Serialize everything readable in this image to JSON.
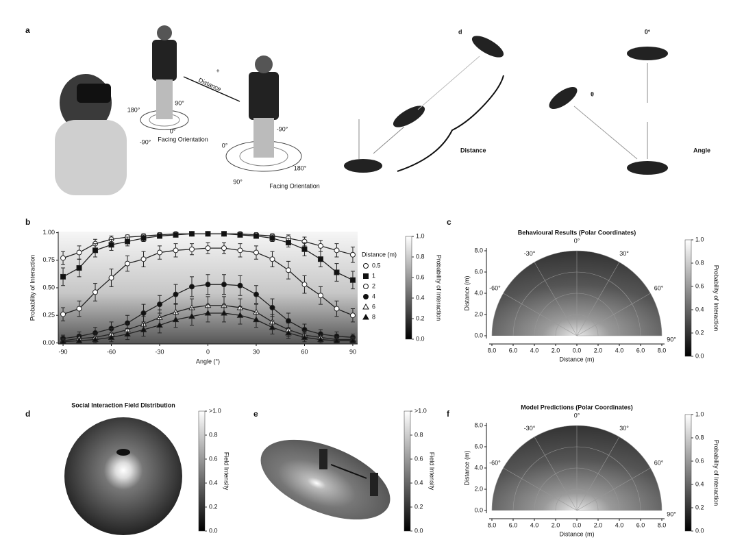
{
  "panel_labels": [
    "a",
    "b",
    "c",
    "d",
    "e",
    "f"
  ],
  "panel_a": {
    "distance_label": "Distance",
    "plus": "+",
    "person1_angles": [
      "180°",
      "90°",
      "0°",
      "-90°"
    ],
    "person1_caption": "Facing Orientation",
    "person2_angles": [
      "0°",
      "-90°",
      "90°",
      "180°"
    ],
    "person2_caption": "Facing Orientation",
    "distance_marker": "d",
    "distance_caption": "Distance",
    "angle_top": "0°",
    "angle_marker": "θ",
    "angle_caption": "Angle"
  },
  "chart_data": [
    {
      "type": "line",
      "xlabel": "Angle (°)",
      "ylabel": "Probability of Interaction",
      "x": [
        -90,
        -80,
        -70,
        -60,
        -50,
        -40,
        -30,
        -20,
        -10,
        0,
        10,
        20,
        30,
        40,
        50,
        60,
        70,
        80,
        90
      ],
      "xlim": [
        -93,
        93
      ],
      "xticks": [
        -90,
        -60,
        -30,
        0,
        30,
        60,
        90
      ],
      "ylim": [
        -0.01,
        1.01
      ],
      "yticks": [
        {
          "value": 0,
          "label": "0.00"
        },
        {
          "value": 0.25,
          "label": "0.25"
        },
        {
          "value": 0.5,
          "label": "0.50"
        },
        {
          "value": 0.75,
          "label": "0.75"
        },
        {
          "value": 1,
          "label": "1.00"
        }
      ],
      "legend_title": "Distance (m)",
      "series": [
        {
          "name": "0.5",
          "color": "#222222",
          "marker": "circle-open",
          "values": [
            0.77,
            0.82,
            0.9,
            0.94,
            0.96,
            0.97,
            0.98,
            0.99,
            0.99,
            0.99,
            0.99,
            0.99,
            0.98,
            0.97,
            0.95,
            0.92,
            0.88,
            0.84,
            0.8
          ],
          "errors": [
            0.06,
            0.06,
            0.04,
            0.03,
            0.02,
            0.02,
            0.02,
            0.01,
            0.01,
            0.01,
            0.01,
            0.01,
            0.02,
            0.02,
            0.03,
            0.04,
            0.05,
            0.06,
            0.07
          ]
        },
        {
          "name": "1",
          "color": "#222222",
          "marker": "square",
          "values": [
            0.6,
            0.68,
            0.84,
            0.89,
            0.92,
            0.95,
            0.97,
            0.98,
            0.99,
            0.99,
            0.99,
            0.98,
            0.97,
            0.95,
            0.91,
            0.85,
            0.76,
            0.64,
            0.57
          ],
          "errors": [
            0.08,
            0.08,
            0.06,
            0.05,
            0.04,
            0.03,
            0.02,
            0.02,
            0.01,
            0.01,
            0.01,
            0.02,
            0.02,
            0.03,
            0.04,
            0.06,
            0.07,
            0.08,
            0.08
          ]
        },
        {
          "name": "2",
          "color": "#222222",
          "marker": "circle-open",
          "values": [
            0.26,
            0.31,
            0.46,
            0.59,
            0.72,
            0.76,
            0.82,
            0.84,
            0.85,
            0.86,
            0.86,
            0.84,
            0.82,
            0.76,
            0.66,
            0.53,
            0.43,
            0.31,
            0.25
          ],
          "errors": [
            0.06,
            0.07,
            0.08,
            0.08,
            0.07,
            0.07,
            0.06,
            0.06,
            0.05,
            0.05,
            0.05,
            0.06,
            0.06,
            0.07,
            0.08,
            0.08,
            0.08,
            0.07,
            0.06
          ]
        },
        {
          "name": "4",
          "color": "#222222",
          "marker": "circle",
          "values": [
            0.04,
            0.06,
            0.09,
            0.13,
            0.18,
            0.27,
            0.35,
            0.44,
            0.51,
            0.53,
            0.53,
            0.52,
            0.44,
            0.32,
            0.2,
            0.12,
            0.08,
            0.06,
            0.05
          ],
          "errors": [
            0.03,
            0.04,
            0.05,
            0.06,
            0.07,
            0.08,
            0.08,
            0.09,
            0.09,
            0.09,
            0.09,
            0.09,
            0.08,
            0.08,
            0.07,
            0.05,
            0.04,
            0.04,
            0.03
          ]
        },
        {
          "name": "6",
          "color": "#222222",
          "marker": "triangle-open",
          "values": [
            0.02,
            0.04,
            0.05,
            0.08,
            0.12,
            0.17,
            0.23,
            0.28,
            0.32,
            0.34,
            0.34,
            0.32,
            0.28,
            0.19,
            0.12,
            0.07,
            0.05,
            0.03,
            0.03
          ],
          "errors": [
            0.02,
            0.03,
            0.04,
            0.05,
            0.06,
            0.07,
            0.07,
            0.08,
            0.08,
            0.08,
            0.08,
            0.08,
            0.07,
            0.07,
            0.06,
            0.04,
            0.03,
            0.03,
            0.02
          ]
        },
        {
          "name": "8",
          "color": "#222222",
          "marker": "triangle",
          "values": [
            0.01,
            0.02,
            0.03,
            0.05,
            0.08,
            0.12,
            0.16,
            0.21,
            0.24,
            0.27,
            0.27,
            0.25,
            0.21,
            0.14,
            0.09,
            0.05,
            0.03,
            0.02,
            0.02
          ],
          "errors": [
            0.01,
            0.02,
            0.03,
            0.04,
            0.05,
            0.06,
            0.07,
            0.07,
            0.08,
            0.08,
            0.08,
            0.08,
            0.07,
            0.06,
            0.05,
            0.04,
            0.03,
            0.02,
            0.02
          ]
        }
      ],
      "colorbar": {
        "label": "Probability of Interaction",
        "lim": [
          0,
          1
        ],
        "ticks": [
          {
            "value": 0,
            "label": "0.0"
          },
          {
            "value": 0.2,
            "label": "0.2"
          },
          {
            "value": 0.4,
            "label": "0.4"
          },
          {
            "value": 0.6,
            "label": "0.6"
          },
          {
            "value": 0.8,
            "label": "0.8"
          },
          {
            "value": 1,
            "label": "1.0"
          }
        ]
      }
    },
    {
      "type": "polar-heatmap",
      "title": "Behavioural Results (Polar Coordinates)",
      "xlabel": "Distance (m)",
      "ylabel": "Distance (m)",
      "rlim": [
        0,
        8
      ],
      "xticks": [
        {
          "value": -8,
          "label": "8.0"
        },
        {
          "value": -6,
          "label": "6.0"
        },
        {
          "value": -4,
          "label": "4.0"
        },
        {
          "value": -2,
          "label": "2.0"
        },
        {
          "value": 0,
          "label": "0.0"
        },
        {
          "value": 2,
          "label": "2.0"
        },
        {
          "value": 4,
          "label": "4.0"
        },
        {
          "value": 6,
          "label": "6.0"
        },
        {
          "value": 8,
          "label": "8.0"
        }
      ],
      "yticks": [
        {
          "value": 0,
          "label": "0.0"
        },
        {
          "value": 2,
          "label": "2.0"
        },
        {
          "value": 4,
          "label": "4.0"
        },
        {
          "value": 6,
          "label": "6.0"
        },
        {
          "value": 8,
          "label": "8.0"
        }
      ],
      "angle_ticks": [
        {
          "value": -60,
          "label": "-60°"
        },
        {
          "value": -30,
          "label": "-30°"
        },
        {
          "value": 0,
          "label": "0°"
        },
        {
          "value": 30,
          "label": "30°"
        },
        {
          "value": 60,
          "label": "60°"
        },
        {
          "value": 90,
          "label": "90°"
        }
      ],
      "colorbar": {
        "label": "Probability of Interaction",
        "lim": [
          0,
          1
        ],
        "ticks": [
          {
            "value": 0,
            "label": "0.0"
          },
          {
            "value": 0.2,
            "label": "0.2"
          },
          {
            "value": 0.4,
            "label": "0.4"
          },
          {
            "value": 0.6,
            "label": "0.6"
          },
          {
            "value": 0.8,
            "label": "0.8"
          },
          {
            "value": 1,
            "label": "1.0"
          }
        ]
      }
    },
    {
      "type": "field",
      "title": "Social Interaction Field Distribution",
      "colorbar": {
        "label": "Field Intensity",
        "lim": [
          0,
          1
        ],
        "ticks": [
          {
            "value": 0,
            "label": "0.0"
          },
          {
            "value": 0.2,
            "label": "0.2"
          },
          {
            "value": 0.4,
            "label": "0.4"
          },
          {
            "value": 0.6,
            "label": "0.6"
          },
          {
            "value": 0.8,
            "label": "0.8"
          },
          {
            "value": 1,
            "label": ">1.0"
          }
        ]
      }
    },
    {
      "type": "field-3d",
      "colorbar": {
        "label": "Field Intensity",
        "lim": [
          0,
          1
        ],
        "ticks": [
          {
            "value": 0,
            "label": "0.0"
          },
          {
            "value": 0.2,
            "label": "0.2"
          },
          {
            "value": 0.4,
            "label": "0.4"
          },
          {
            "value": 0.6,
            "label": "0.6"
          },
          {
            "value": 0.8,
            "label": "0.8"
          },
          {
            "value": 1,
            "label": ">1.0"
          }
        ]
      }
    },
    {
      "type": "polar-heatmap",
      "title": "Model Predictions (Polar Coordinates)",
      "xlabel": "Distance (m)",
      "ylabel": "Distance (m)",
      "rlim": [
        0,
        8
      ],
      "xticks": [
        {
          "value": -8,
          "label": "8.0"
        },
        {
          "value": -6,
          "label": "6.0"
        },
        {
          "value": -4,
          "label": "4.0"
        },
        {
          "value": -2,
          "label": "2.0"
        },
        {
          "value": 0,
          "label": "0.0"
        },
        {
          "value": 2,
          "label": "2.0"
        },
        {
          "value": 4,
          "label": "4.0"
        },
        {
          "value": 6,
          "label": "6.0"
        },
        {
          "value": 8,
          "label": "8.0"
        }
      ],
      "yticks": [
        {
          "value": 0,
          "label": "0.0"
        },
        {
          "value": 2,
          "label": "2.0"
        },
        {
          "value": 4,
          "label": "4.0"
        },
        {
          "value": 6,
          "label": "6.0"
        },
        {
          "value": 8,
          "label": "8.0"
        }
      ],
      "angle_ticks": [
        {
          "value": -60,
          "label": "-60°"
        },
        {
          "value": -30,
          "label": "-30°"
        },
        {
          "value": 0,
          "label": "0°"
        },
        {
          "value": 30,
          "label": "30°"
        },
        {
          "value": 60,
          "label": "60°"
        },
        {
          "value": 90,
          "label": "90°"
        }
      ],
      "colorbar": {
        "label": "Probability of Interaction",
        "lim": [
          0,
          1
        ],
        "ticks": [
          {
            "value": 0,
            "label": "0.0"
          },
          {
            "value": 0.2,
            "label": "0.2"
          },
          {
            "value": 0.4,
            "label": "0.4"
          },
          {
            "value": 0.6,
            "label": "0.6"
          },
          {
            "value": 0.8,
            "label": "0.8"
          },
          {
            "value": 1,
            "label": "1.0"
          }
        ]
      }
    }
  ]
}
